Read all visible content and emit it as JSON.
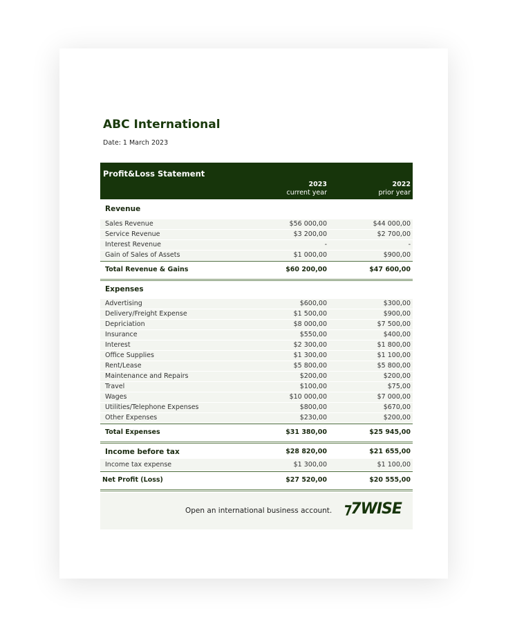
{
  "company": "ABC International",
  "date": "Date: 1 March 2023",
  "statement_title": "Profit&Loss Statement",
  "columns": [
    {
      "year": "2023",
      "sub": "current year"
    },
    {
      "year": "2022",
      "sub": "prior year"
    }
  ],
  "revenue": {
    "label": "Revenue",
    "items": [
      {
        "name": "Sales Revenue",
        "cur": "$56 000,00",
        "prior": "$44 000,00"
      },
      {
        "name": "Service Revenue",
        "cur": "$3 200,00",
        "prior": "$2 700,00"
      },
      {
        "name": "Interest Revenue",
        "cur": "-",
        "prior": "-"
      },
      {
        "name": "Gain of Sales of Assets",
        "cur": "$1 000,00",
        "prior": "$900,00"
      }
    ],
    "total": {
      "name": "Total Revenue & Gains",
      "cur": "$60 200,00",
      "prior": "$47 600,00"
    }
  },
  "expenses": {
    "label": "Expenses",
    "items": [
      {
        "name": "Advertising",
        "cur": "$600,00",
        "prior": "$300,00"
      },
      {
        "name": "Delivery/Freight Expense",
        "cur": "$1 500,00",
        "prior": "$900,00"
      },
      {
        "name": "Depriciation",
        "cur": "$8 000,00",
        "prior": "$7 500,00"
      },
      {
        "name": "Insurance",
        "cur": "$550,00",
        "prior": "$400,00"
      },
      {
        "name": "Interest",
        "cur": "$2 300,00",
        "prior": "$1 800,00"
      },
      {
        "name": "Office Supplies",
        "cur": "$1 300,00",
        "prior": "$1 100,00"
      },
      {
        "name": "Rent/Lease",
        "cur": "$5 800,00",
        "prior": "$5 800,00"
      },
      {
        "name": "Maintenance and Repairs",
        "cur": "$200,00",
        "prior": "$200,00"
      },
      {
        "name": "Travel",
        "cur": "$100,00",
        "prior": "$75,00"
      },
      {
        "name": "Wages",
        "cur": "$10 000,00",
        "prior": "$7 000,00"
      },
      {
        "name": "Utilities/Telephone Expenses",
        "cur": "$800,00",
        "prior": "$670,00"
      },
      {
        "name": "Other Expenses",
        "cur": "$230,00",
        "prior": "$200,00"
      }
    ],
    "total": {
      "name": "Total Expenses",
      "cur": "$31 380,00",
      "prior": "$25 945,00"
    }
  },
  "income_before_tax": {
    "name": "Income before tax",
    "cur": "$28 820,00",
    "prior": "$21 655,00"
  },
  "income_tax": {
    "name": "Income tax expense",
    "cur": "$1 300,00",
    "prior": "$1 100,00"
  },
  "net_profit": {
    "name": "Net Profit (Loss)",
    "cur": "$27 520,00",
    "prior": "$20 555,00"
  },
  "footer": {
    "text": "Open an international business account.",
    "logo": "WISE"
  }
}
